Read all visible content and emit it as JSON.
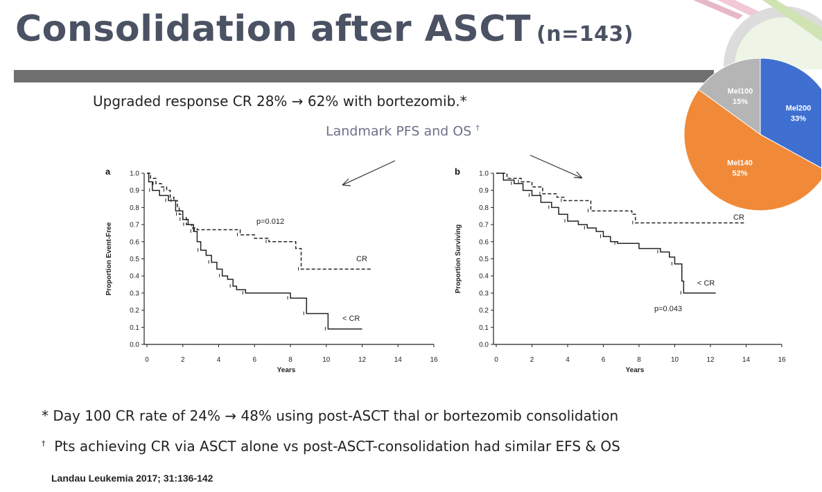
{
  "header": {
    "title": "Consolidation after ASCT",
    "n_label": "(n=143)"
  },
  "bullets": {
    "upgraded": "Upgraded response CR 28% → 62% with bortezomib.*",
    "landmark": "Landmark PFS and OS",
    "landmark_mark": "†"
  },
  "footnotes": {
    "fn1": "* Day 100 CR rate of 24% → 48% using post-ASCT thal or bortezomib consolidation",
    "fn2_mark": "†",
    "fn2": "Pts achieving CR via ASCT alone vs post-ASCT-consolidation had similar EFS & OS",
    "citation": "Landau Leukemia 2017; 31:136-142"
  },
  "colors": {
    "title": "#4a5263",
    "rule": "#6f6f6f",
    "subtitle": "#6b7088",
    "mel200": "#3f6fd0",
    "mel140": "#f08a38",
    "mel100": "#b5b5b5"
  },
  "chart_data": [
    {
      "type": "line",
      "panel": "a",
      "xlabel": "Years",
      "ylabel": "Proportion Event-Free",
      "xlim": [
        0,
        16
      ],
      "ylim": [
        0,
        1
      ],
      "xticks": [
        0,
        2,
        4,
        6,
        8,
        10,
        12,
        14,
        16
      ],
      "yticks": [
        0.0,
        0.1,
        0.2,
        0.3,
        0.4,
        0.5,
        0.6,
        0.7,
        0.8,
        0.9,
        1.0
      ],
      "annotation": "p=0.012",
      "series": [
        {
          "name": "CR",
          "style": "dashed",
          "points": [
            [
              0,
              1.0
            ],
            [
              0.2,
              0.97
            ],
            [
              0.5,
              0.94
            ],
            [
              0.8,
              0.92
            ],
            [
              1.1,
              0.9
            ],
            [
              1.3,
              0.86
            ],
            [
              1.5,
              0.84
            ],
            [
              1.7,
              0.8
            ],
            [
              1.8,
              0.76
            ],
            [
              2.0,
              0.74
            ],
            [
              2.2,
              0.7
            ],
            [
              2.5,
              0.68
            ],
            [
              2.8,
              0.67
            ],
            [
              4.2,
              0.67
            ],
            [
              5.2,
              0.64
            ],
            [
              6.0,
              0.62
            ],
            [
              6.8,
              0.6
            ],
            [
              8.3,
              0.56
            ],
            [
              8.6,
              0.44
            ],
            [
              12.5,
              0.44
            ]
          ]
        },
        {
          "name": "< CR",
          "style": "solid",
          "points": [
            [
              0,
              1.0
            ],
            [
              0.1,
              0.95
            ],
            [
              0.3,
              0.9
            ],
            [
              0.7,
              0.87
            ],
            [
              1.2,
              0.84
            ],
            [
              1.6,
              0.78
            ],
            [
              2.0,
              0.73
            ],
            [
              2.3,
              0.7
            ],
            [
              2.6,
              0.66
            ],
            [
              2.8,
              0.6
            ],
            [
              3.0,
              0.55
            ],
            [
              3.3,
              0.52
            ],
            [
              3.6,
              0.48
            ],
            [
              3.9,
              0.44
            ],
            [
              4.2,
              0.4
            ],
            [
              4.5,
              0.38
            ],
            [
              4.8,
              0.34
            ],
            [
              5.0,
              0.32
            ],
            [
              5.5,
              0.3
            ],
            [
              7.9,
              0.3
            ],
            [
              8.0,
              0.27
            ],
            [
              8.8,
              0.27
            ],
            [
              8.9,
              0.18
            ],
            [
              10.0,
              0.18
            ],
            [
              10.1,
              0.09
            ],
            [
              12.0,
              0.09
            ]
          ]
        }
      ]
    },
    {
      "type": "line",
      "panel": "b",
      "xlabel": "Years",
      "ylabel": "Proportion Surviving",
      "xlim": [
        0,
        16
      ],
      "ylim": [
        0,
        1
      ],
      "xticks": [
        0,
        2,
        4,
        6,
        8,
        10,
        12,
        14,
        16
      ],
      "yticks": [
        0.0,
        0.1,
        0.2,
        0.3,
        0.4,
        0.5,
        0.6,
        0.7,
        0.8,
        0.9,
        1.0
      ],
      "annotation": "p=0.043",
      "series": [
        {
          "name": "CR",
          "style": "dashed",
          "points": [
            [
              0,
              1.0
            ],
            [
              0.6,
              0.97
            ],
            [
              1.4,
              0.95
            ],
            [
              2.0,
              0.92
            ],
            [
              2.6,
              0.88
            ],
            [
              3.4,
              0.86
            ],
            [
              3.8,
              0.84
            ],
            [
              5.2,
              0.84
            ],
            [
              5.3,
              0.78
            ],
            [
              7.6,
              0.76
            ],
            [
              7.8,
              0.71
            ],
            [
              14.0,
              0.71
            ]
          ]
        },
        {
          "name": "< CR",
          "style": "solid",
          "points": [
            [
              0,
              1.0
            ],
            [
              0.4,
              0.96
            ],
            [
              1.0,
              0.94
            ],
            [
              1.5,
              0.9
            ],
            [
              2.0,
              0.87
            ],
            [
              2.5,
              0.83
            ],
            [
              3.1,
              0.8
            ],
            [
              3.5,
              0.76
            ],
            [
              4.0,
              0.72
            ],
            [
              4.6,
              0.7
            ],
            [
              5.1,
              0.68
            ],
            [
              5.6,
              0.66
            ],
            [
              6.0,
              0.63
            ],
            [
              6.4,
              0.6
            ],
            [
              6.8,
              0.59
            ],
            [
              8.0,
              0.56
            ],
            [
              9.2,
              0.54
            ],
            [
              9.7,
              0.51
            ],
            [
              10.0,
              0.47
            ],
            [
              10.4,
              0.37
            ],
            [
              10.5,
              0.3
            ],
            [
              12.3,
              0.3
            ]
          ]
        }
      ]
    },
    {
      "type": "pie",
      "categories": [
        "Mel200",
        "Mel140",
        "Mel100"
      ],
      "values": [
        33,
        52,
        15
      ],
      "labels": [
        "33%",
        "52%",
        "15%"
      ]
    }
  ]
}
